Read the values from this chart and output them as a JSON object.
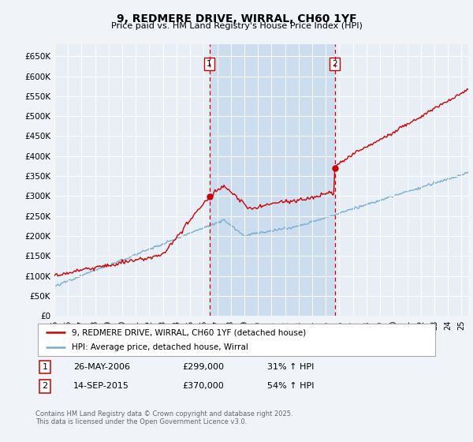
{
  "title": "9, REDMERE DRIVE, WIRRAL, CH60 1YF",
  "subtitle": "Price paid vs. HM Land Registry's House Price Index (HPI)",
  "background_color": "#f0f4f8",
  "plot_bg_color": "#e8eef5",
  "shade_color": "#ccddf0",
  "ylim": [
    0,
    680000
  ],
  "yticks": [
    0,
    50000,
    100000,
    150000,
    200000,
    250000,
    300000,
    350000,
    400000,
    450000,
    500000,
    550000,
    600000,
    650000
  ],
  "ytick_labels": [
    "£0",
    "£50K",
    "£100K",
    "£150K",
    "£200K",
    "£250K",
    "£300K",
    "£350K",
    "£400K",
    "£450K",
    "£500K",
    "£550K",
    "£600K",
    "£650K"
  ],
  "legend_label_red": "9, REDMERE DRIVE, WIRRAL, CH60 1YF (detached house)",
  "legend_label_blue": "HPI: Average price, detached house, Wirral",
  "copyright_text": "Contains HM Land Registry data © Crown copyright and database right 2025.\nThis data is licensed under the Open Government Licence v3.0.",
  "sale1_date": "26-MAY-2006",
  "sale1_price": "£299,000",
  "sale1_hpi": "31% ↑ HPI",
  "sale1_year": 2006.4,
  "sale1_price_val": 299000,
  "sale2_date": "14-SEP-2015",
  "sale2_price": "£370,000",
  "sale2_hpi": "54% ↑ HPI",
  "sale2_year": 2015.7,
  "sale2_price_val": 370000,
  "red_color": "#cc0000",
  "blue_color": "#7aadcf",
  "xlim_start": 1995,
  "xlim_end": 2025.5
}
